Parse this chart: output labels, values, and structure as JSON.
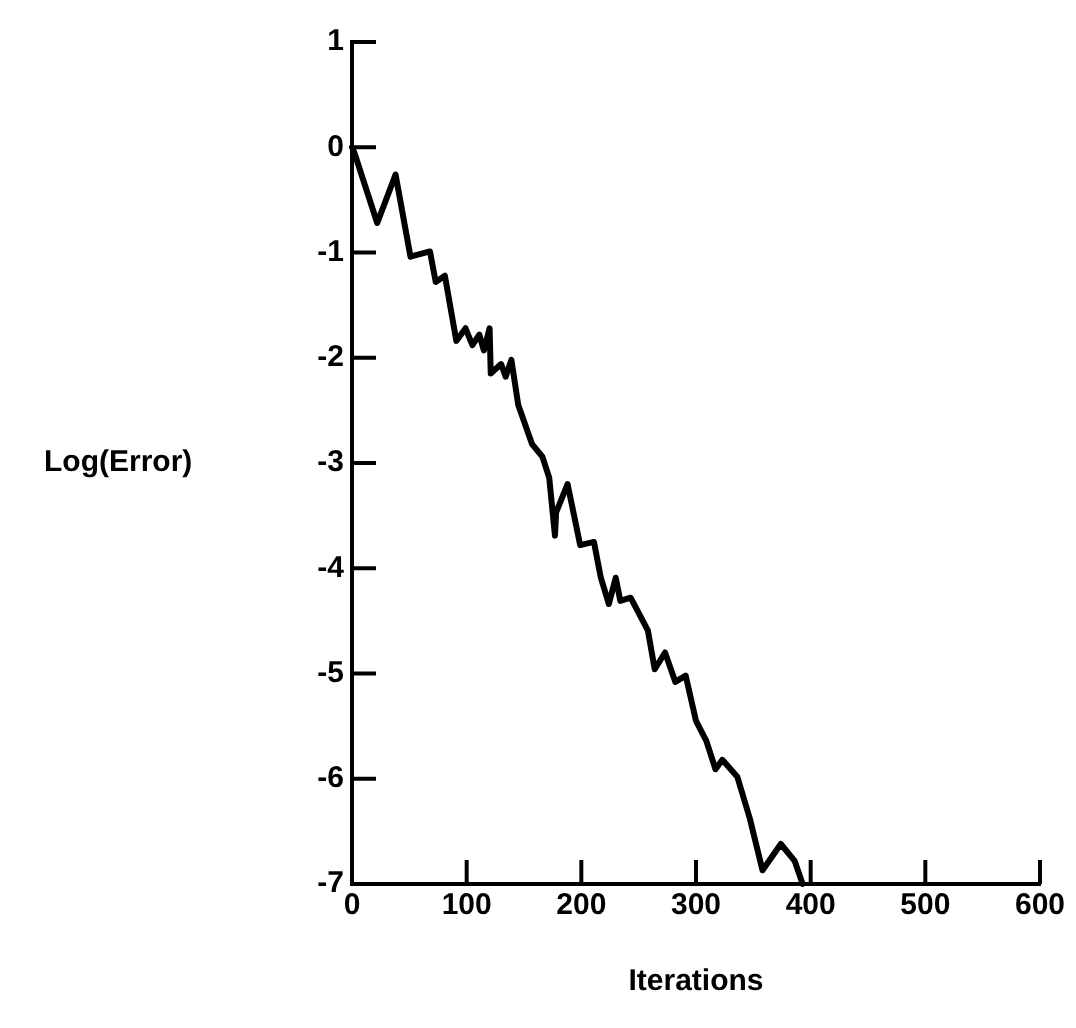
{
  "chart_data": {
    "type": "line",
    "xlabel": "Iterations",
    "ylabel": "Log(Error)",
    "x": [
      0,
      2,
      22,
      38,
      51,
      68,
      73,
      81,
      91,
      99,
      105,
      111,
      115,
      120,
      121,
      130,
      134,
      139,
      145,
      157,
      166,
      172,
      177,
      178,
      188,
      199,
      211,
      217,
      224,
      230,
      234,
      243,
      258,
      264,
      273,
      282,
      291,
      300,
      309,
      317,
      323,
      336,
      347,
      358,
      374,
      386,
      393
    ],
    "series": [
      {
        "color": "#000000",
        "values": [
          0,
          -0.05,
          -0.72,
          -0.26,
          -1.04,
          -0.99,
          -1.28,
          -1.22,
          -1.84,
          -1.72,
          -1.88,
          -1.78,
          -1.93,
          -1.72,
          -2.15,
          -2.06,
          -2.18,
          -2.02,
          -2.45,
          -2.82,
          -2.94,
          -3.14,
          -3.69,
          -3.47,
          -3.2,
          -3.78,
          -3.75,
          -4.09,
          -4.34,
          -4.09,
          -4.31,
          -4.28,
          -4.59,
          -4.96,
          -4.8,
          -5.08,
          -5.02,
          -5.45,
          -5.64,
          -5.91,
          -5.82,
          -5.98,
          -6.38,
          -6.87,
          -6.62,
          -6.78,
          -7
        ]
      }
    ],
    "xlim": [
      0,
      600
    ],
    "xticks": [
      0,
      100,
      200,
      300,
      400,
      500,
      600
    ],
    "ylim": [
      -7,
      1
    ],
    "yticks": [
      -7,
      -6,
      -5,
      -4,
      -3,
      -2,
      -1,
      0,
      1
    ],
    "grid": false,
    "legend": false,
    "marker": "none",
    "line_style": "solid"
  }
}
